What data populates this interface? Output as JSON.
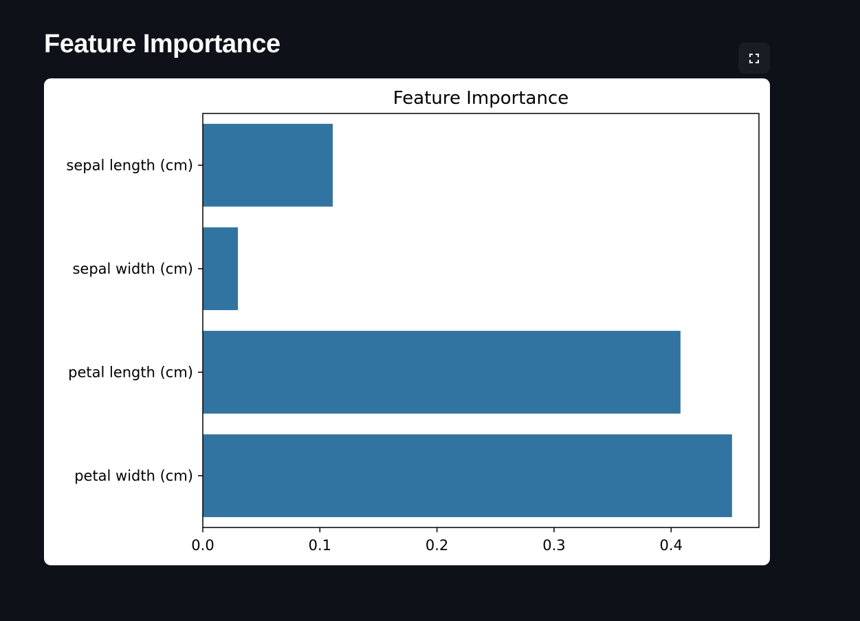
{
  "page": {
    "heading": "Feature Importance"
  },
  "toolbar": {
    "fullscreen_icon": "fullscreen-expand-icon"
  },
  "colors": {
    "background": "#0e1117",
    "heading": "#fafafa",
    "bar": "#3274a1",
    "card": "#ffffff",
    "button_bg": "#1a1c24"
  },
  "chart_data": {
    "type": "bar",
    "orientation": "horizontal",
    "title": "Feature Importance",
    "xlabel": "",
    "ylabel": "",
    "categories": [
      "sepal length (cm)",
      "sepal width (cm)",
      "petal length (cm)",
      "petal width (cm)"
    ],
    "values": [
      0.111,
      0.03,
      0.408,
      0.452
    ],
    "xlim": [
      0,
      0.475
    ],
    "xticks": [
      0.0,
      0.1,
      0.2,
      0.3,
      0.4
    ],
    "xtick_labels": [
      "0.0",
      "0.1",
      "0.2",
      "0.3",
      "0.4"
    ],
    "grid": false,
    "legend": "none"
  }
}
